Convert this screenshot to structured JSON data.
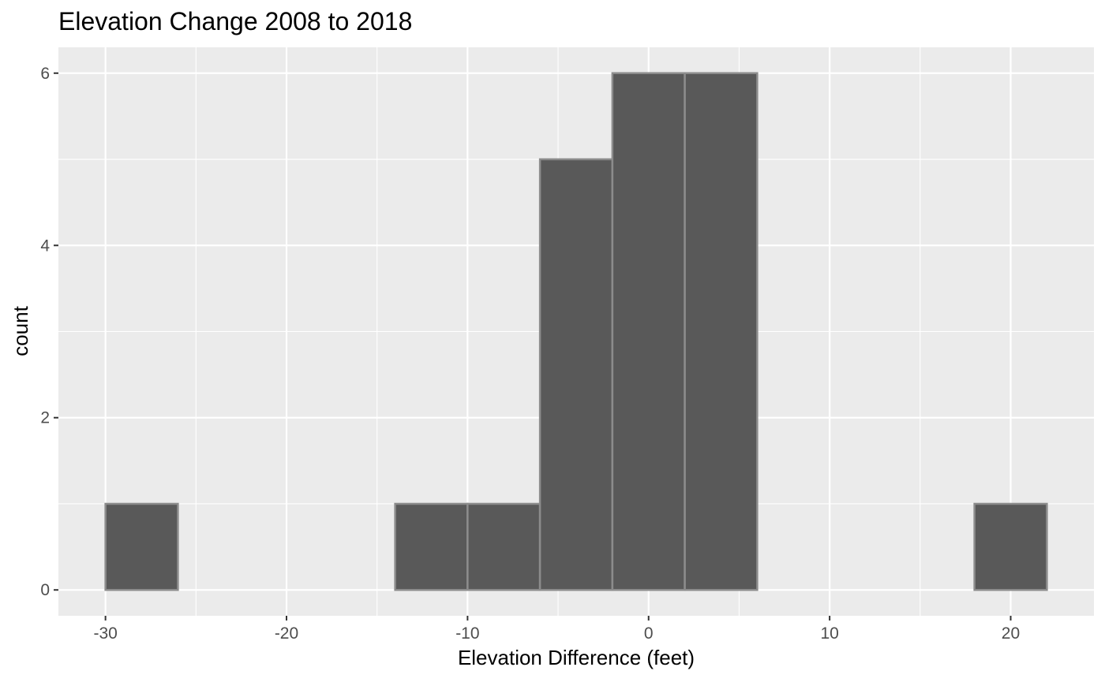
{
  "chart_data": {
    "type": "bar",
    "subtype": "histogram",
    "title": "Elevation Change 2008 to 2018",
    "xlabel": "Elevation Difference (feet)",
    "ylabel": "count",
    "xlim": [
      -32.6,
      24.6
    ],
    "ylim": [
      -0.3,
      6.3
    ],
    "x_ticks": [
      -30,
      -20,
      -10,
      0,
      10,
      20
    ],
    "x_tick_labels": [
      "-30",
      "-20",
      "-10",
      "0",
      "10",
      "20"
    ],
    "y_ticks": [
      0,
      2,
      4,
      6
    ],
    "y_tick_labels": [
      "0",
      "2",
      "4",
      "6"
    ],
    "bins": [
      {
        "x0": -30,
        "x1": -26,
        "count": 1
      },
      {
        "x0": -26,
        "x1": -22,
        "count": 0
      },
      {
        "x0": -22,
        "x1": -18,
        "count": 0
      },
      {
        "x0": -18,
        "x1": -14,
        "count": 0
      },
      {
        "x0": -14,
        "x1": -10,
        "count": 1
      },
      {
        "x0": -10,
        "x1": -6,
        "count": 1
      },
      {
        "x0": -6,
        "x1": -2,
        "count": 5
      },
      {
        "x0": -2,
        "x1": 2,
        "count": 6
      },
      {
        "x0": 2,
        "x1": 6,
        "count": 6
      },
      {
        "x0": 6,
        "x1": 10,
        "count": 0
      },
      {
        "x0": 10,
        "x1": 14,
        "count": 0
      },
      {
        "x0": 14,
        "x1": 18,
        "count": 0
      },
      {
        "x0": 18,
        "x1": 22,
        "count": 1
      }
    ],
    "grid": true,
    "legend": "none",
    "colors": {
      "panel_background": "#ebebeb",
      "grid_major": "#ffffff",
      "bar_fill": "#595959",
      "bar_outline": "#8c8c8c",
      "tick_label": "#4d4d4d",
      "tick_mark": "#333333"
    }
  }
}
